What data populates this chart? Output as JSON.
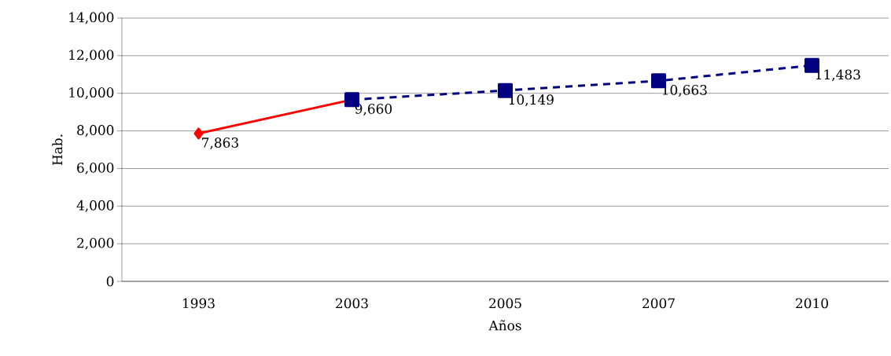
{
  "chart_data": {
    "type": "line",
    "xlabel": "Años",
    "ylabel": "Hab.",
    "categories": [
      "1993",
      "2003",
      "2005",
      "2007",
      "2010"
    ],
    "series": [
      {
        "color": "#ff0000",
        "values": [
          7863,
          9660,
          null,
          null,
          null
        ],
        "marker": "diamond",
        "line_style": "solid",
        "value_labels": [
          "7,863",
          null,
          null,
          null,
          null
        ]
      },
      {
        "color": "#000080",
        "values": [
          null,
          9660,
          10149,
          10663,
          11483
        ],
        "marker": "square",
        "line_style": "dashed",
        "value_labels": [
          null,
          "9,660",
          "10,149",
          "10,663",
          "11,483"
        ]
      }
    ],
    "ylim": [
      0,
      14000
    ],
    "yticks": [
      0,
      {
        "value": 2000,
        "label": "2,000"
      },
      {
        "value": 4000,
        "label": "4,000"
      },
      {
        "value": 6000,
        "label": "6,000"
      },
      {
        "value": 8000,
        "label": "8,000"
      },
      {
        "value": 10000,
        "label": "10,000"
      },
      {
        "value": 12000,
        "label": "12,000"
      },
      {
        "value": 14000,
        "label": "14,000"
      }
    ],
    "grid": "y"
  }
}
